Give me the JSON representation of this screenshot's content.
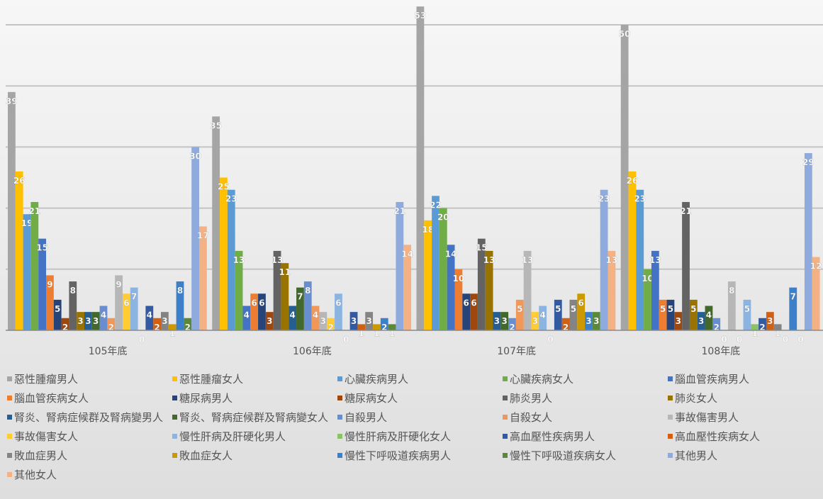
{
  "colors": {
    "series": [
      "#a5a5a5",
      "#ffc000",
      "#5b9bd5",
      "#70ad47",
      "#4472c4",
      "#ed7d31",
      "#264478",
      "#9e480e",
      "#636363",
      "#997300",
      "#255e91",
      "#43682b",
      "#698ed0",
      "#f1975a",
      "#b7b7b7",
      "#ffcd33",
      "#8cb4e1",
      "#8cc168",
      "#335aa1",
      "#d26012",
      "#848484",
      "#cc9a00",
      "#3c80ca",
      "#5a8a39",
      "#8faadc",
      "#f4b183"
    ]
  },
  "chart_data": {
    "type": "bar",
    "categories": [
      "105年底",
      "106年底",
      "107年底",
      "108年底"
    ],
    "ylim": [
      0,
      55
    ],
    "grid": true,
    "legend_position": "bottom",
    "series": [
      {
        "name": "惡性腫瘤男人",
        "values": [
          39,
          35,
          53,
          50
        ]
      },
      {
        "name": "惡性腫瘤女人",
        "values": [
          26,
          25,
          18,
          26
        ]
      },
      {
        "name": "心臟疾病男人",
        "values": [
          19,
          23,
          22,
          23
        ]
      },
      {
        "name": "心臟疾病女人",
        "values": [
          21,
          13,
          20,
          10
        ]
      },
      {
        "name": "腦血管疾病男人",
        "values": [
          15,
          4,
          14,
          13
        ]
      },
      {
        "name": "腦血管疾病女人",
        "values": [
          9,
          6,
          10,
          5
        ]
      },
      {
        "name": "糖尿病男人",
        "values": [
          5,
          6,
          6,
          5
        ]
      },
      {
        "name": "糖尿病女人",
        "values": [
          2,
          3,
          6,
          3
        ]
      },
      {
        "name": "肺炎男人",
        "values": [
          8,
          13,
          15,
          21
        ]
      },
      {
        "name": "肺炎女人",
        "values": [
          3,
          11,
          13,
          5
        ]
      },
      {
        "name": "腎炎、腎病症候群及腎病變男人",
        "values": [
          3,
          4,
          3,
          3
        ]
      },
      {
        "name": "腎炎、腎病症候群及腎病變女人",
        "values": [
          3,
          7,
          3,
          4
        ]
      },
      {
        "name": "自殺男人",
        "values": [
          4,
          8,
          2,
          2
        ]
      },
      {
        "name": "自殺女人",
        "values": [
          2,
          4,
          5,
          0
        ]
      },
      {
        "name": "事故傷害男人",
        "values": [
          9,
          3,
          13,
          8
        ]
      },
      {
        "name": "事故傷害女人",
        "values": [
          6,
          2,
          3,
          0
        ]
      },
      {
        "name": "慢性肝病及肝硬化男人",
        "values": [
          7,
          6,
          4,
          5
        ]
      },
      {
        "name": "慢性肝病及肝硬化女人",
        "values": [
          0,
          0,
          0,
          1
        ]
      },
      {
        "name": "高血壓性疾病男人",
        "values": [
          4,
          3,
          5,
          2
        ]
      },
      {
        "name": "高血壓性疾病女人",
        "values": [
          2,
          1,
          2,
          3
        ]
      },
      {
        "name": "敗血症男人",
        "values": [
          3,
          3,
          5,
          1
        ]
      },
      {
        "name": "敗血症女人",
        "values": [
          1,
          1,
          6,
          0
        ]
      },
      {
        "name": "慢性下呼吸道疾病男人",
        "values": [
          8,
          2,
          3,
          7
        ]
      },
      {
        "name": "慢性下呼吸道疾病女人",
        "values": [
          2,
          1,
          3,
          0
        ]
      },
      {
        "name": "其他男人",
        "values": [
          30,
          21,
          23,
          29
        ]
      },
      {
        "name": "其他女人",
        "values": [
          17,
          14,
          13,
          12
        ]
      }
    ]
  }
}
